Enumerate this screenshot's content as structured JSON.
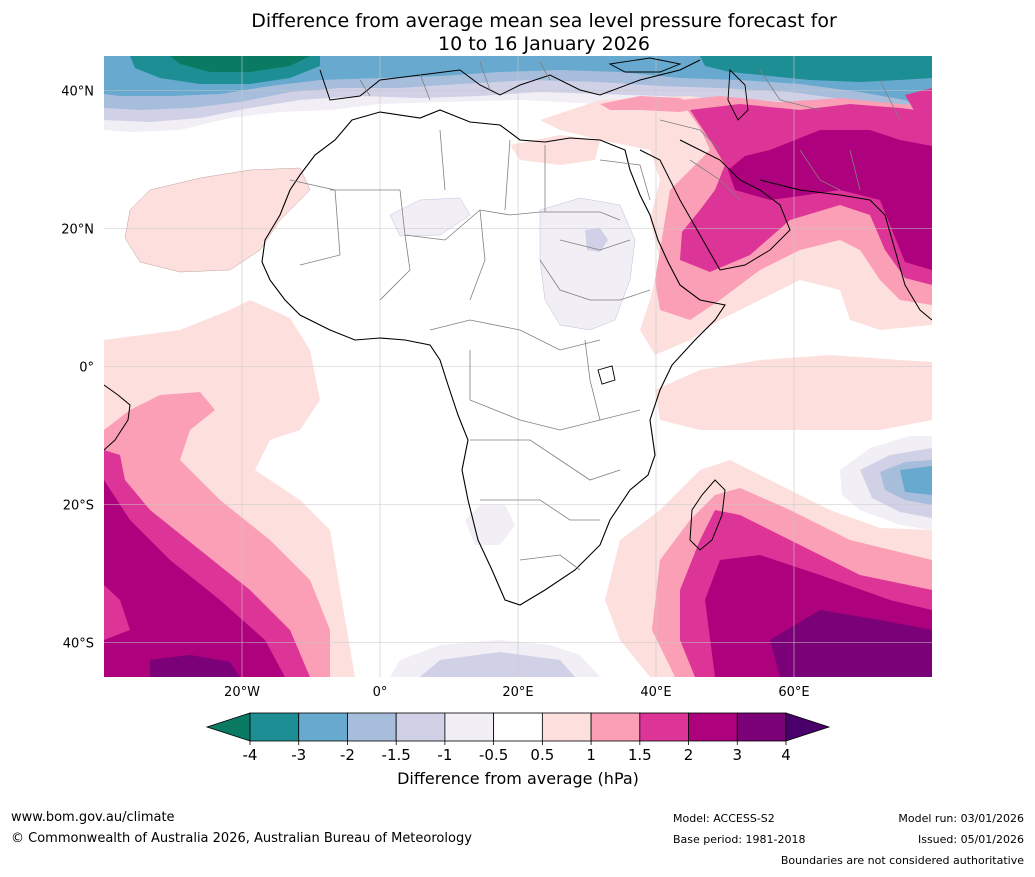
{
  "title": {
    "line1": "Difference from average mean sea level pressure forecast for",
    "line2": "10 to 16 January 2026"
  },
  "map": {
    "lat_labels": [
      "40°N",
      "20°N",
      "0°",
      "20°S",
      "40°S"
    ],
    "lon_labels": [
      "20°W",
      "0°",
      "20°E",
      "40°E",
      "60°E"
    ],
    "lat_values": [
      40,
      20,
      0,
      -20,
      -40
    ],
    "lon_values": [
      -20,
      0,
      20,
      40,
      60
    ],
    "extent": {
      "lon_min": -40,
      "lon_max": 80,
      "lat_min": -45,
      "lat_max": 45
    },
    "anomaly_regions": [
      {
        "name": "mediterranean-negative",
        "level": -2
      },
      {
        "name": "north-atlantic-strong-negative",
        "level": -4
      },
      {
        "name": "south-atlantic-positive",
        "level": 3
      },
      {
        "name": "southwest-indian-ocean-positive",
        "level": 4
      },
      {
        "name": "arabia-india-positive",
        "level": 3
      },
      {
        "name": "madagascar-east-negative",
        "level": -2
      }
    ]
  },
  "colorbar": {
    "tick_labels": [
      "-4",
      "-3",
      "-2",
      "-1.5",
      "-1",
      "-0.5",
      "0.5",
      "1",
      "1.5",
      "2",
      "3",
      "4"
    ],
    "colors": [
      "#0b7a63",
      "#1d8f94",
      "#67a9cf",
      "#a6bddb",
      "#d0d1e6",
      "#f1eef6",
      "#ffffff",
      "#fde0dd",
      "#fa9fb5",
      "#dd3497",
      "#ae017e",
      "#7a0177",
      "#49006a"
    ],
    "title": "Difference from average (hPa)"
  },
  "footer": {
    "website": "www.bom.gov.au/climate",
    "copyright": "© Commonwealth of Australia 2026, Australian Bureau of Meteorology",
    "model": "Model: ACCESS-S2",
    "base_period": "Base period: 1981-2018",
    "model_run": "Model run: 03/01/2026",
    "issued": "Issued: 05/01/2026",
    "disclaimer": "Boundaries are not considered authoritative"
  }
}
